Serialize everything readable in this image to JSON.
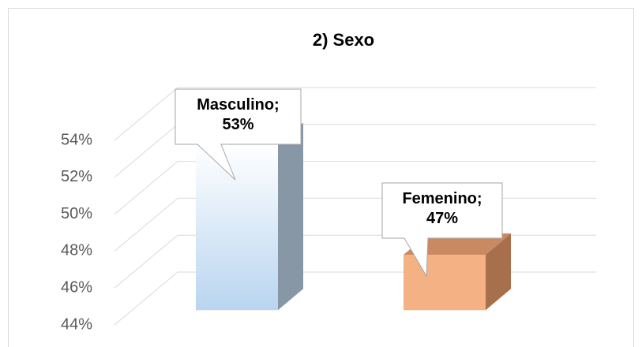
{
  "chart_data": {
    "type": "bar3d",
    "title": "2) Sexo",
    "categories": [
      null,
      null
    ],
    "series": [
      {
        "values": [
          53,
          47
        ],
        "value_labels": [
          "Masculino; 53%",
          "Femenino; 47%"
        ],
        "colors": [
          "#b9d5f0",
          "#f4b183"
        ]
      }
    ],
    "ylim": [
      44,
      54
    ],
    "yticks": [
      {
        "value": 44,
        "label": "44%"
      },
      {
        "value": 46,
        "label": "46%"
      },
      {
        "value": 48,
        "label": "48%"
      },
      {
        "value": 50,
        "label": "50%"
      },
      {
        "value": 52,
        "label": "52%"
      },
      {
        "value": 54,
        "label": "54%"
      }
    ],
    "grid": true
  }
}
